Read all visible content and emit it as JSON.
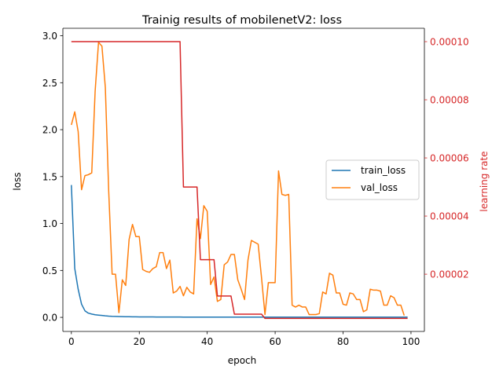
{
  "chart_data": {
    "type": "line",
    "title": "Trainig results of mobilenetV2: loss",
    "xlabel": "epoch",
    "ylabel": "loss",
    "y2label": "learning rate",
    "xlim": [
      -2.5,
      103.95
    ],
    "ylim": [
      -0.15,
      3.08
    ],
    "y2lim": [
      3e-07,
      0.0001046
    ],
    "grid": false,
    "legend_position": "center-right",
    "x_ticks": [
      0,
      20,
      40,
      60,
      80,
      100
    ],
    "x_tick_labels": [
      "0",
      "20",
      "40",
      "60",
      "80",
      "100"
    ],
    "y_ticks": [
      0.0,
      0.5,
      1.0,
      1.5,
      2.0,
      2.5,
      3.0
    ],
    "y_tick_labels": [
      "0.0",
      "0.5",
      "1.0",
      "1.5",
      "2.0",
      "2.5",
      "3.0"
    ],
    "y2_ticks": [
      2e-05,
      4e-05,
      6e-05,
      8e-05,
      0.0001
    ],
    "y2_tick_labels": [
      "0.00002",
      "0.00004",
      "0.00006",
      "0.00008",
      "0.00010"
    ],
    "colors": {
      "train_loss": "#1f77b4",
      "val_loss": "#ff7f0e",
      "learning_rate": "#d62728",
      "axis": "#000000"
    },
    "series": [
      {
        "name": "train_loss",
        "axis": "left",
        "color": "#1f77b4",
        "values": [
          1.41,
          0.52,
          0.3,
          0.14,
          0.07,
          0.045,
          0.035,
          0.028,
          0.024,
          0.02,
          0.016,
          0.013,
          0.011,
          0.01,
          0.009,
          0.008,
          0.007,
          0.007,
          0.006,
          0.006,
          0.005,
          0.005,
          0.005,
          0.005,
          0.005,
          0.004,
          0.004,
          0.004,
          0.004,
          0.004,
          0.004,
          0.004,
          0.004,
          0.003,
          0.003,
          0.003,
          0.003,
          0.003,
          0.003,
          0.003,
          0.003,
          0.003,
          0.003,
          0.003,
          0.003,
          0.003,
          0.003,
          0.003,
          0.003,
          0.003,
          0.003,
          0.003,
          0.003,
          0.003,
          0.003,
          0.003,
          0.003,
          0.003,
          0.003,
          0.003,
          0.003,
          0.003,
          0.003,
          0.003,
          0.003,
          0.003,
          0.003,
          0.003,
          0.003,
          0.003,
          0.003,
          0.003,
          0.003,
          0.003,
          0.003,
          0.003,
          0.003,
          0.003,
          0.003,
          0.003,
          0.003,
          0.003,
          0.003,
          0.003,
          0.003,
          0.003,
          0.003,
          0.003,
          0.003,
          0.003,
          0.003,
          0.003,
          0.003,
          0.003,
          0.003,
          0.003,
          0.003,
          0.003,
          0.003,
          0.003
        ]
      },
      {
        "name": "val_loss",
        "axis": "left",
        "color": "#ff7f0e",
        "values": [
          2.05,
          2.19,
          1.98,
          1.36,
          1.51,
          1.52,
          1.54,
          2.41,
          2.93,
          2.89,
          2.45,
          1.34,
          0.46,
          0.46,
          0.05,
          0.4,
          0.34,
          0.83,
          0.99,
          0.86,
          0.86,
          0.51,
          0.49,
          0.48,
          0.52,
          0.54,
          0.69,
          0.69,
          0.52,
          0.61,
          0.26,
          0.28,
          0.33,
          0.23,
          0.32,
          0.27,
          0.25,
          1.05,
          0.84,
          1.19,
          1.13,
          0.35,
          0.43,
          0.17,
          0.19,
          0.56,
          0.59,
          0.67,
          0.67,
          0.4,
          0.3,
          0.19,
          0.61,
          0.82,
          0.8,
          0.78,
          0.42,
          0.03,
          0.37,
          0.37,
          0.37,
          1.56,
          1.31,
          1.3,
          1.31,
          0.13,
          0.11,
          0.13,
          0.11,
          0.11,
          0.03,
          0.03,
          0.03,
          0.04,
          0.27,
          0.25,
          0.47,
          0.45,
          0.26,
          0.26,
          0.14,
          0.13,
          0.26,
          0.25,
          0.19,
          0.19,
          0.06,
          0.08,
          0.3,
          0.29,
          0.29,
          0.28,
          0.13,
          0.13,
          0.23,
          0.21,
          0.13,
          0.13,
          0.02
        ]
      },
      {
        "name": "learning_rate",
        "axis": "right",
        "color": "#d62728",
        "values": [
          0.0001,
          0.0001,
          0.0001,
          0.0001,
          0.0001,
          0.0001,
          0.0001,
          0.0001,
          0.0001,
          0.0001,
          0.0001,
          0.0001,
          0.0001,
          0.0001,
          0.0001,
          0.0001,
          0.0001,
          0.0001,
          0.0001,
          0.0001,
          0.0001,
          0.0001,
          0.0001,
          0.0001,
          0.0001,
          0.0001,
          0.0001,
          0.0001,
          0.0001,
          0.0001,
          0.0001,
          0.0001,
          0.0001,
          5e-05,
          5e-05,
          5e-05,
          5e-05,
          5e-05,
          2.5e-05,
          2.5e-05,
          2.5e-05,
          2.5e-05,
          2.5e-05,
          1.25e-05,
          1.25e-05,
          1.25e-05,
          1.25e-05,
          1.25e-05,
          6.25e-06,
          6.25e-06,
          6.25e-06,
          6.25e-06,
          6.25e-06,
          6.25e-06,
          6.25e-06,
          6.25e-06,
          6.25e-06,
          4.8e-06,
          4.8e-06,
          4.8e-06,
          4.8e-06,
          4.8e-06,
          4.8e-06,
          4.8e-06,
          4.8e-06,
          4.8e-06,
          4.8e-06,
          4.8e-06,
          4.8e-06,
          4.8e-06,
          4.8e-06,
          4.8e-06,
          4.8e-06,
          4.8e-06,
          4.8e-06,
          4.8e-06,
          4.8e-06,
          4.8e-06,
          4.8e-06,
          4.8e-06,
          4.8e-06,
          4.8e-06,
          4.8e-06,
          4.8e-06,
          4.8e-06,
          4.8e-06,
          4.8e-06,
          4.8e-06,
          4.8e-06,
          4.8e-06,
          4.8e-06,
          4.8e-06,
          4.8e-06,
          4.8e-06,
          4.8e-06,
          4.8e-06,
          4.8e-06,
          4.8e-06,
          4.8e-06,
          4.8e-06
        ]
      }
    ],
    "legend": [
      {
        "label": "train_loss",
        "color": "#1f77b4"
      },
      {
        "label": "val_loss",
        "color": "#ff7f0e"
      }
    ]
  }
}
